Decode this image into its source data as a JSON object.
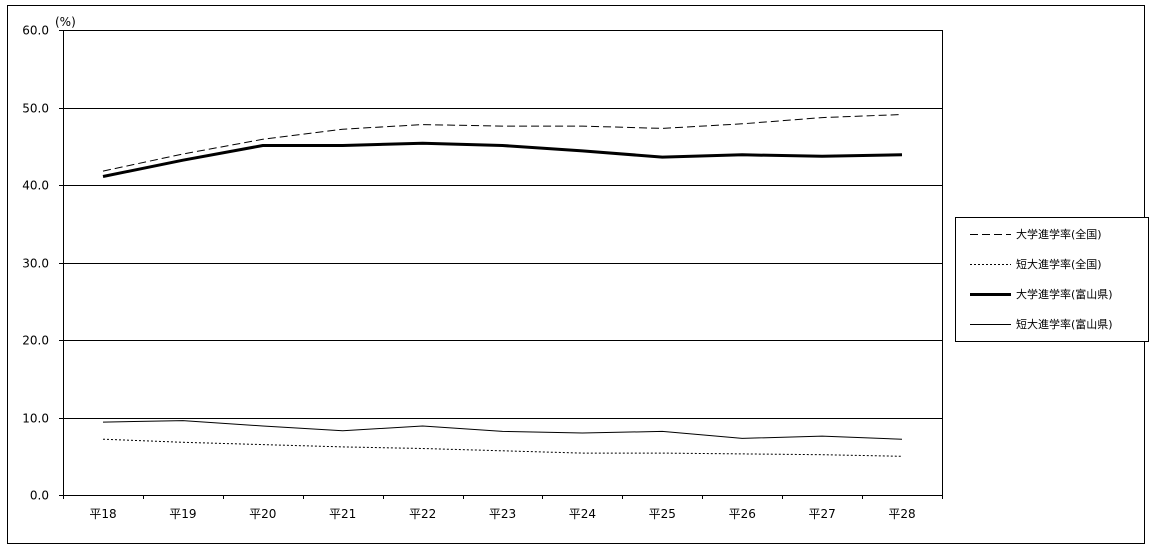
{
  "chart_data": {
    "type": "line",
    "title": "",
    "xlabel": "",
    "ylabel": "",
    "unit_label": "(%)",
    "categories": [
      "平18",
      "平19",
      "平20",
      "平21",
      "平22",
      "平23",
      "平24",
      "平25",
      "平26",
      "平27",
      "平28"
    ],
    "ylim": [
      0,
      60
    ],
    "ytick_labels": [
      "0.0",
      "10.0",
      "20.0",
      "30.0",
      "40.0",
      "50.0",
      "60.0"
    ],
    "ytick_values": [
      0,
      10,
      20,
      30,
      40,
      50,
      60
    ],
    "grid": true,
    "legend_position": "right",
    "series": [
      {
        "name": "大学進学率(全国)",
        "style": "dashed",
        "color": "#000000",
        "values": [
          41.8,
          44.0,
          45.9,
          47.2,
          47.8,
          47.6,
          47.6,
          47.3,
          47.9,
          48.7,
          49.1
        ]
      },
      {
        "name": "短大進学率(全国)",
        "style": "dotted",
        "color": "#000000",
        "values": [
          7.2,
          6.8,
          6.5,
          6.2,
          6.0,
          5.7,
          5.4,
          5.4,
          5.3,
          5.2,
          5.0
        ]
      },
      {
        "name": "大学進学率(富山県)",
        "style": "thick",
        "color": "#000000",
        "values": [
          41.1,
          43.2,
          45.1,
          45.1,
          45.4,
          45.1,
          44.4,
          43.6,
          43.9,
          43.7,
          43.9
        ]
      },
      {
        "name": "短大進学率(富山県)",
        "style": "solid",
        "color": "#000000",
        "values": [
          9.4,
          9.6,
          8.9,
          8.3,
          8.9,
          8.2,
          8.0,
          8.2,
          7.3,
          7.6,
          7.2
        ]
      }
    ]
  }
}
